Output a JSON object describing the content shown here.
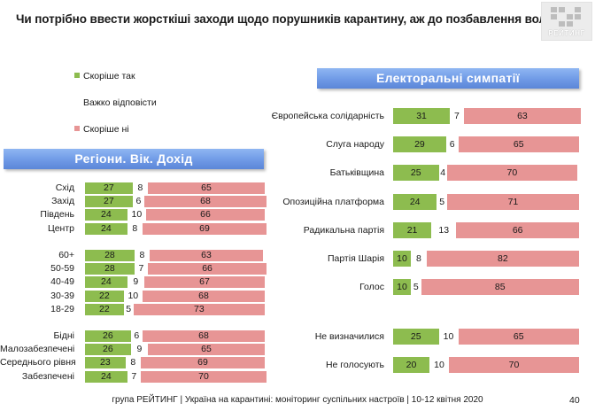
{
  "title": "Чи потрібно ввести жорсткіші заходи щодо порушників карантину, аж до позбавлення волі ?",
  "logo_text": "РЕЙТИНГ",
  "legend": [
    {
      "label": "Скоріше  так",
      "color": "#8dbc4f"
    },
    {
      "label": "Важко відповісти",
      "color": "#ffffff"
    },
    {
      "label": "Скоріше  ні",
      "color": "#e79595"
    }
  ],
  "left_banner": "Регіони. Вік. Дохід",
  "right_banner": "Електоральні симпатії",
  "left_groups": [
    [
      {
        "label": "Схід",
        "yes": 27,
        "mid": 8,
        "no": 65
      },
      {
        "label": "Захід",
        "yes": 27,
        "mid": 6,
        "no": 68
      },
      {
        "label": "Південь",
        "yes": 24,
        "mid": 10,
        "no": 66
      },
      {
        "label": "Центр",
        "yes": 24,
        "mid": 8,
        "no": 69
      }
    ],
    [
      {
        "label": "60+",
        "yes": 28,
        "mid": 8,
        "no": 63
      },
      {
        "label": "50-59",
        "yes": 28,
        "mid": 7,
        "no": 66
      },
      {
        "label": "40-49",
        "yes": 24,
        "mid": 9,
        "no": 67
      },
      {
        "label": "30-39",
        "yes": 22,
        "mid": 10,
        "no": 68
      },
      {
        "label": "18-29",
        "yes": 22,
        "mid": 5,
        "no": 73
      }
    ],
    [
      {
        "label": "Бідні",
        "yes": 26,
        "mid": 6,
        "no": 68
      },
      {
        "label": "Малозабезпечені",
        "yes": 26,
        "mid": 9,
        "no": 65
      },
      {
        "label": "Середнього рівня",
        "yes": 23,
        "mid": 8,
        "no": 69
      },
      {
        "label": "Забезпечені",
        "yes": 24,
        "mid": 7,
        "no": 70
      }
    ]
  ],
  "right_groups": [
    [
      {
        "label": "Європейська солідарність",
        "yes": 31,
        "mid": 7,
        "no": 63
      },
      {
        "label": "Слуга народу",
        "yes": 29,
        "mid": 6,
        "no": 65
      },
      {
        "label": "Батьківщина",
        "yes": 25,
        "mid": 4,
        "no": 70
      },
      {
        "label": "Опозиційна платформа",
        "yes": 24,
        "mid": 5,
        "no": 71
      },
      {
        "label": "Радикальна партія",
        "yes": 21,
        "mid": 13,
        "no": 66
      },
      {
        "label": "Партія Шарія",
        "yes": 10,
        "mid": 8,
        "no": 82
      },
      {
        "label": "Голос",
        "yes": 10,
        "mid": 5,
        "no": 85
      }
    ],
    [
      {
        "label": "Не визначилися",
        "yes": 25,
        "mid": 10,
        "no": 65
      },
      {
        "label": "Не голосують",
        "yes": 20,
        "mid": 10,
        "no": 70
      }
    ]
  ],
  "footer": "група РЕЙТИНГ | Україна на карантині: моніторинг суспільних настроїв  | 10-12 квітня  2020",
  "page_number": "40"
}
